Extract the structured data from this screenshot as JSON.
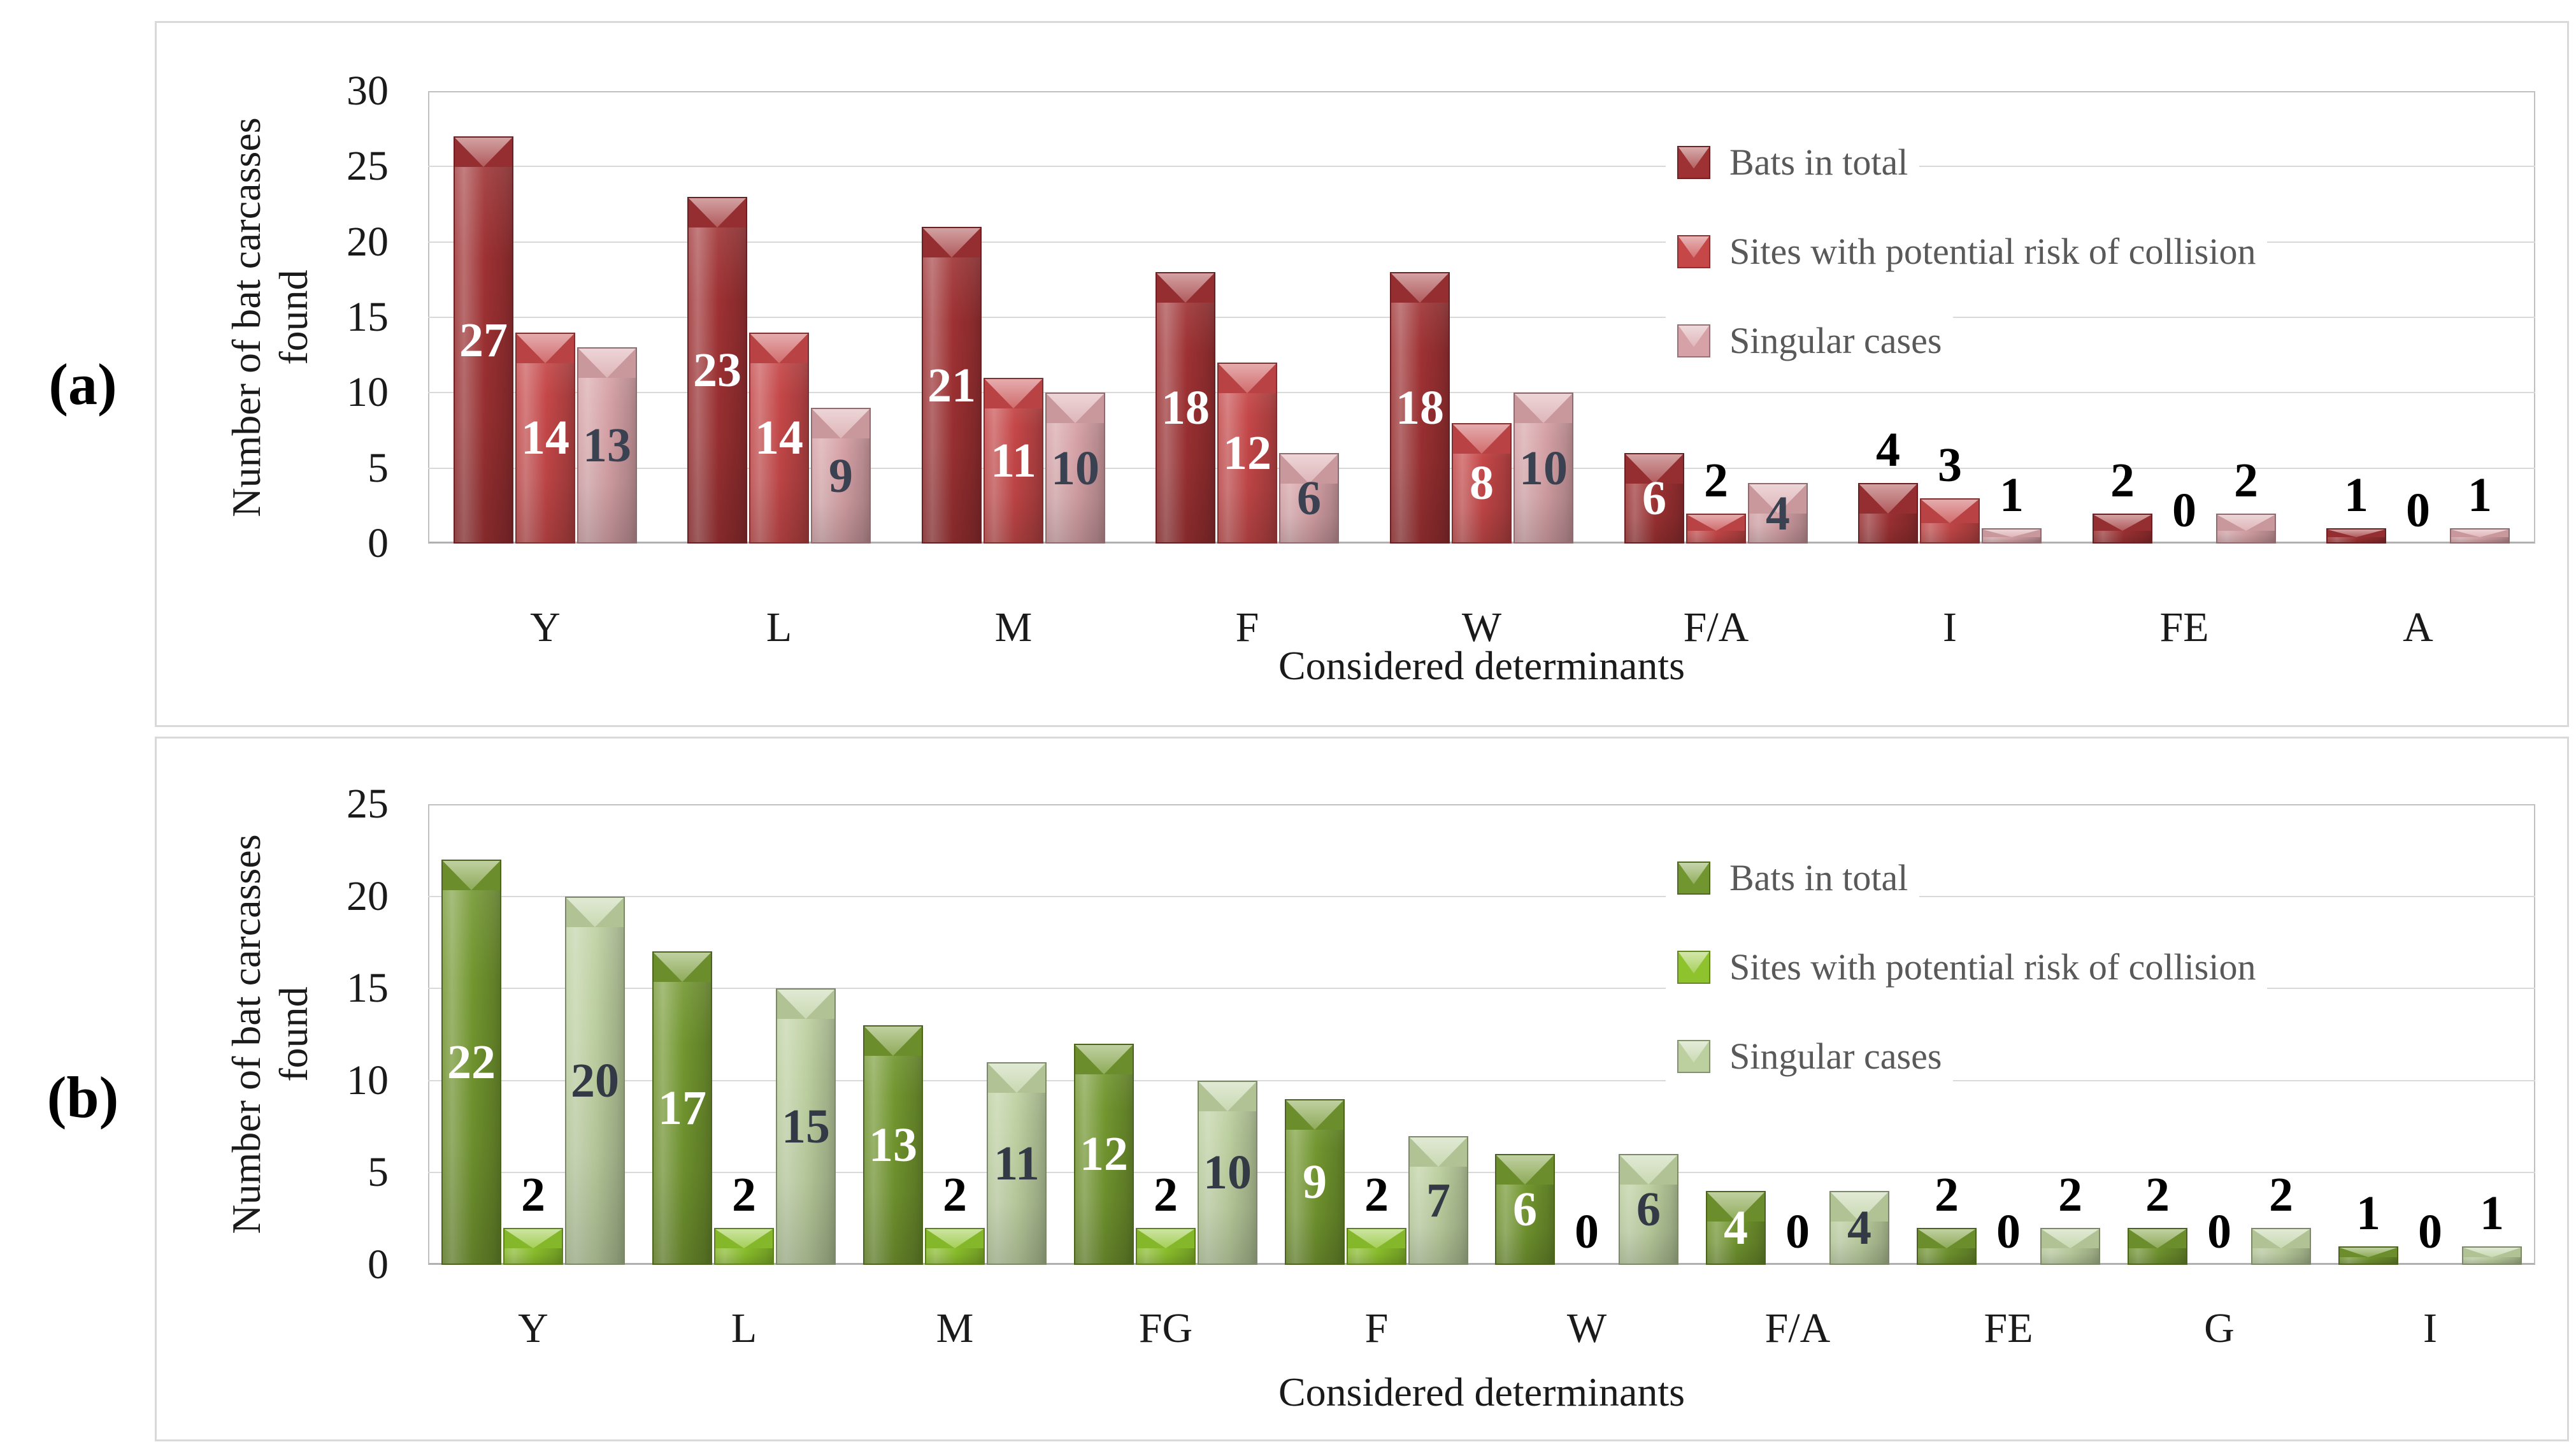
{
  "figure": {
    "panel_a_label": "(a)",
    "panel_b_label": "(b)"
  },
  "chart_data": [
    {
      "id": "a",
      "type": "bar",
      "title": "",
      "xlabel": "Considered  determinants",
      "ylabel": "Number of bat carcasses found",
      "ylabel_lines": [
        "Number of bat carcasses",
        "found"
      ],
      "ylim": [
        0,
        30
      ],
      "yticks": [
        0,
        5,
        10,
        15,
        20,
        25,
        30
      ],
      "grid": true,
      "legend_position": "top-right-inside",
      "categories": [
        "Y",
        "L",
        "M",
        "F",
        "W",
        "F/A",
        "I",
        "FE",
        "A"
      ],
      "series": [
        {
          "name": "Bats in total",
          "color": "#9e3133",
          "label_color_in": "#ffffff",
          "values": [
            27,
            23,
            21,
            18,
            18,
            6,
            4,
            2,
            1
          ],
          "label_placement": [
            "in",
            "in",
            "in",
            "in",
            "in",
            "in",
            "out",
            "out",
            "out"
          ]
        },
        {
          "name": "Sites with potential risk of collision",
          "color": "#c54748",
          "label_color_in": "#ffffff",
          "values": [
            14,
            14,
            11,
            12,
            8,
            2,
            3,
            0,
            0
          ],
          "label_placement": [
            "in",
            "in",
            "in",
            "in",
            "in",
            "out",
            "out",
            "out",
            "out"
          ]
        },
        {
          "name": "Singular cases",
          "color": "#d6a2a7",
          "label_color_in": "#3a4150",
          "values": [
            13,
            9,
            10,
            6,
            10,
            4,
            1,
            2,
            1
          ],
          "label_placement": [
            "in",
            "in",
            "in",
            "in",
            "in",
            "in",
            "out",
            "out",
            "out"
          ]
        }
      ],
      "label_color_out": "#000000"
    },
    {
      "id": "b",
      "type": "bar",
      "title": "",
      "xlabel": "Considered  determinants",
      "ylabel": "Number of bat carcasses found",
      "ylabel_lines": [
        "Number of bat carcasses",
        "found"
      ],
      "ylim": [
        0,
        25
      ],
      "yticks": [
        0,
        5,
        10,
        15,
        20,
        25
      ],
      "grid": true,
      "legend_position": "top-right-inside",
      "categories": [
        "Y",
        "L",
        "M",
        "FG",
        "F",
        "W",
        "F/A",
        "FE",
        "G",
        "I"
      ],
      "series": [
        {
          "name": "Bats in total",
          "color": "#72962f",
          "label_color_in": "#ffffff",
          "values": [
            22,
            17,
            13,
            12,
            9,
            6,
            4,
            2,
            2,
            1
          ],
          "label_placement": [
            "in",
            "in",
            "in",
            "in",
            "in",
            "in",
            "in",
            "out",
            "out",
            "out"
          ]
        },
        {
          "name": "Sites with potential risk of collision",
          "color": "#8ec32d",
          "label_color_in": "#ffffff",
          "values": [
            2,
            2,
            2,
            2,
            2,
            0,
            0,
            0,
            0,
            0
          ],
          "label_placement": [
            "out",
            "out",
            "out",
            "out",
            "out",
            "out",
            "out",
            "out",
            "out",
            "out"
          ]
        },
        {
          "name": "Singular cases",
          "color": "#bccf9f",
          "label_color_in": "#333a46",
          "values": [
            20,
            15,
            11,
            10,
            7,
            6,
            4,
            2,
            2,
            1
          ],
          "label_placement": [
            "in",
            "in",
            "in",
            "in",
            "in",
            "in",
            "in",
            "out",
            "out",
            "out"
          ]
        }
      ],
      "label_color_out": "#000000"
    }
  ],
  "colors": {
    "panel_border": "#d9d9d9",
    "plot_border": "#c0c0c0",
    "gridline": "#d9d9d9",
    "legend_text": "#595959",
    "background": "#ffffff"
  }
}
